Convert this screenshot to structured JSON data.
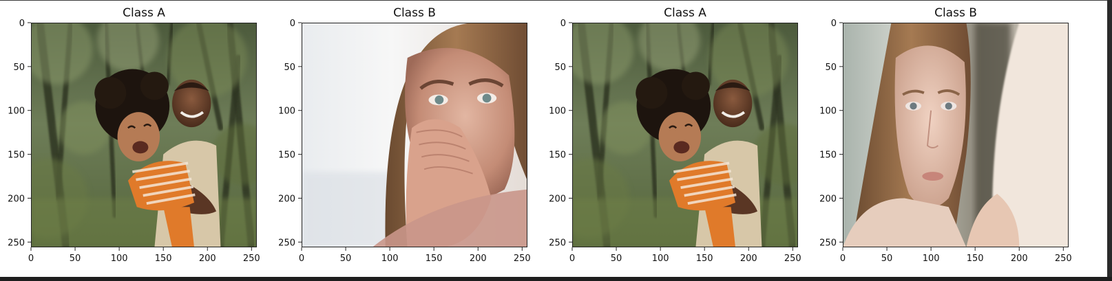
{
  "chart_data": [
    {
      "type": "image",
      "title": "Class A",
      "image_subject": "father-and-laughing-child-outdoors",
      "xlim": [
        0,
        256
      ],
      "ylim": [
        256,
        0
      ],
      "xticks": [
        0,
        50,
        100,
        150,
        200,
        250
      ],
      "yticks": [
        0,
        50,
        100,
        150,
        200,
        250
      ],
      "xtick_labels": [
        "0",
        "50",
        "100",
        "150",
        "200",
        "250"
      ],
      "ytick_labels": [
        "0",
        "50",
        "100",
        "150",
        "200",
        "250"
      ]
    },
    {
      "type": "image",
      "title": "Class B",
      "image_subject": "woman-covering-mouth-worried",
      "xlim": [
        0,
        256
      ],
      "ylim": [
        256,
        0
      ],
      "xticks": [
        0,
        50,
        100,
        150,
        200,
        250
      ],
      "yticks": [
        0,
        50,
        100,
        150,
        200,
        250
      ],
      "xtick_labels": [
        "0",
        "50",
        "100",
        "150",
        "200",
        "250"
      ],
      "ytick_labels": [
        "0",
        "50",
        "100",
        "150",
        "200",
        "250"
      ]
    },
    {
      "type": "image",
      "title": "Class A",
      "image_subject": "father-and-laughing-child-outdoors",
      "xlim": [
        0,
        256
      ],
      "ylim": [
        256,
        0
      ],
      "xticks": [
        0,
        50,
        100,
        150,
        200,
        250
      ],
      "yticks": [
        0,
        50,
        100,
        150,
        200,
        250
      ],
      "xtick_labels": [
        "0",
        "50",
        "100",
        "150",
        "200",
        "250"
      ],
      "ytick_labels": [
        "0",
        "50",
        "100",
        "150",
        "200",
        "250"
      ]
    },
    {
      "type": "image",
      "title": "Class B",
      "image_subject": "sad-young-woman-long-hair",
      "xlim": [
        0,
        256
      ],
      "ylim": [
        256,
        0
      ],
      "xticks": [
        0,
        50,
        100,
        150,
        200,
        250
      ],
      "yticks": [
        0,
        50,
        100,
        150,
        200,
        250
      ],
      "xtick_labels": [
        "0",
        "50",
        "100",
        "150",
        "200",
        "250"
      ],
      "ytick_labels": [
        "0",
        "50",
        "100",
        "150",
        "200",
        "250"
      ]
    }
  ]
}
